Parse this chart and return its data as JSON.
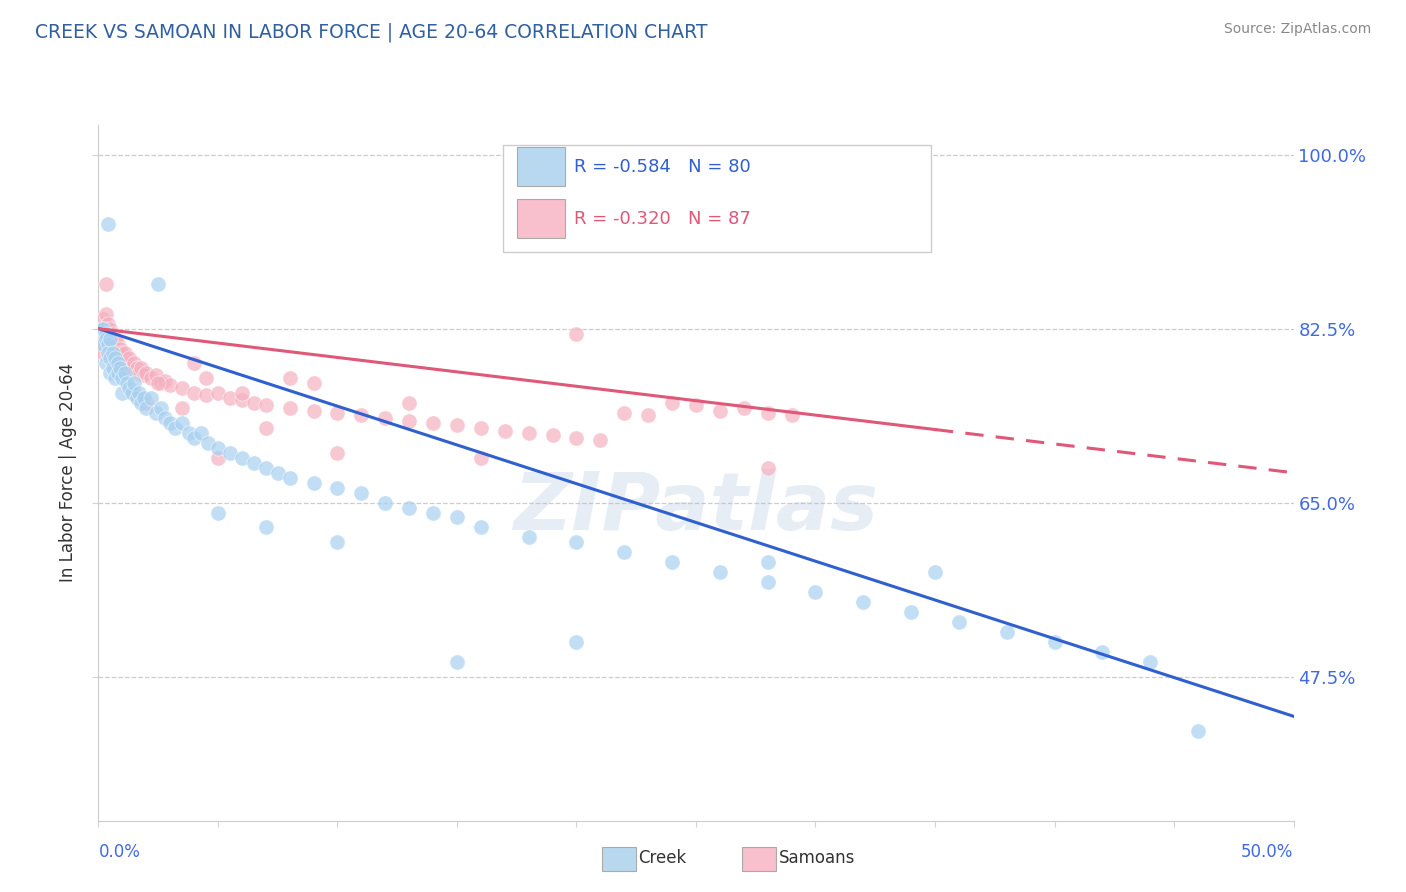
{
  "title": "CREEK VS SAMOAN IN LABOR FORCE | AGE 20-64 CORRELATION CHART",
  "ylabel": "In Labor Force | Age 20-64",
  "source": "Source: ZipAtlas.com",
  "creek_R": "-0.584",
  "creek_N": 80,
  "samoan_R": "-0.320",
  "samoan_N": 87,
  "xmin": 0.0,
  "xmax": 0.5,
  "ymin": 0.33,
  "ymax": 1.03,
  "yticks": [
    0.475,
    0.65,
    0.825,
    1.0
  ],
  "ytick_labels": [
    "47.5%",
    "65.0%",
    "82.5%",
    "100.0%"
  ],
  "creek_color": "#a8d0f0",
  "samoan_color": "#f5b0c0",
  "creek_line_color": "#3060d0",
  "samoan_line_color": "#e05878",
  "creek_line_y0": 0.825,
  "creek_line_y1": 0.435,
  "samoan_line_y0": 0.825,
  "samoan_line_y1": 0.68,
  "watermark_text": "ZIPatlas",
  "legend_box_color_creek": "#b8d8f0",
  "legend_box_color_samoan": "#f8c0cc",
  "creek_scatter": [
    [
      0.001,
      0.825
    ],
    [
      0.002,
      0.825
    ],
    [
      0.002,
      0.81
    ],
    [
      0.003,
      0.82
    ],
    [
      0.003,
      0.815
    ],
    [
      0.003,
      0.79
    ],
    [
      0.004,
      0.81
    ],
    [
      0.004,
      0.8
    ],
    [
      0.005,
      0.815
    ],
    [
      0.005,
      0.795
    ],
    [
      0.005,
      0.78
    ],
    [
      0.006,
      0.8
    ],
    [
      0.006,
      0.785
    ],
    [
      0.007,
      0.795
    ],
    [
      0.007,
      0.775
    ],
    [
      0.008,
      0.79
    ],
    [
      0.008,
      0.78
    ],
    [
      0.009,
      0.785
    ],
    [
      0.01,
      0.775
    ],
    [
      0.01,
      0.76
    ],
    [
      0.011,
      0.78
    ],
    [
      0.012,
      0.77
    ],
    [
      0.013,
      0.765
    ],
    [
      0.014,
      0.76
    ],
    [
      0.015,
      0.77
    ],
    [
      0.016,
      0.755
    ],
    [
      0.017,
      0.76
    ],
    [
      0.018,
      0.75
    ],
    [
      0.019,
      0.755
    ],
    [
      0.02,
      0.745
    ],
    [
      0.022,
      0.755
    ],
    [
      0.024,
      0.74
    ],
    [
      0.026,
      0.745
    ],
    [
      0.028,
      0.735
    ],
    [
      0.03,
      0.73
    ],
    [
      0.032,
      0.725
    ],
    [
      0.035,
      0.73
    ],
    [
      0.038,
      0.72
    ],
    [
      0.04,
      0.715
    ],
    [
      0.043,
      0.72
    ],
    [
      0.046,
      0.71
    ],
    [
      0.05,
      0.705
    ],
    [
      0.055,
      0.7
    ],
    [
      0.06,
      0.695
    ],
    [
      0.065,
      0.69
    ],
    [
      0.07,
      0.685
    ],
    [
      0.075,
      0.68
    ],
    [
      0.08,
      0.675
    ],
    [
      0.09,
      0.67
    ],
    [
      0.1,
      0.665
    ],
    [
      0.11,
      0.66
    ],
    [
      0.12,
      0.65
    ],
    [
      0.13,
      0.645
    ],
    [
      0.14,
      0.64
    ],
    [
      0.15,
      0.635
    ],
    [
      0.16,
      0.625
    ],
    [
      0.18,
      0.615
    ],
    [
      0.2,
      0.61
    ],
    [
      0.22,
      0.6
    ],
    [
      0.24,
      0.59
    ],
    [
      0.26,
      0.58
    ],
    [
      0.28,
      0.57
    ],
    [
      0.3,
      0.56
    ],
    [
      0.32,
      0.55
    ],
    [
      0.34,
      0.54
    ],
    [
      0.36,
      0.53
    ],
    [
      0.38,
      0.52
    ],
    [
      0.4,
      0.51
    ],
    [
      0.42,
      0.5
    ],
    [
      0.44,
      0.49
    ],
    [
      0.004,
      0.93
    ],
    [
      0.025,
      0.87
    ],
    [
      0.05,
      0.64
    ],
    [
      0.07,
      0.625
    ],
    [
      0.1,
      0.61
    ],
    [
      0.15,
      0.49
    ],
    [
      0.2,
      0.51
    ],
    [
      0.28,
      0.59
    ],
    [
      0.35,
      0.58
    ],
    [
      0.46,
      0.42
    ]
  ],
  "samoan_scatter": [
    [
      0.001,
      0.825
    ],
    [
      0.001,
      0.81
    ],
    [
      0.002,
      0.835
    ],
    [
      0.002,
      0.82
    ],
    [
      0.002,
      0.8
    ],
    [
      0.003,
      0.84
    ],
    [
      0.003,
      0.825
    ],
    [
      0.003,
      0.81
    ],
    [
      0.004,
      0.83
    ],
    [
      0.004,
      0.815
    ],
    [
      0.005,
      0.825
    ],
    [
      0.005,
      0.81
    ],
    [
      0.005,
      0.8
    ],
    [
      0.006,
      0.82
    ],
    [
      0.006,
      0.805
    ],
    [
      0.006,
      0.795
    ],
    [
      0.007,
      0.815
    ],
    [
      0.007,
      0.8
    ],
    [
      0.008,
      0.81
    ],
    [
      0.008,
      0.8
    ],
    [
      0.008,
      0.785
    ],
    [
      0.009,
      0.805
    ],
    [
      0.009,
      0.795
    ],
    [
      0.01,
      0.8
    ],
    [
      0.01,
      0.785
    ],
    [
      0.011,
      0.8
    ],
    [
      0.012,
      0.79
    ],
    [
      0.013,
      0.795
    ],
    [
      0.014,
      0.785
    ],
    [
      0.015,
      0.79
    ],
    [
      0.016,
      0.785
    ],
    [
      0.017,
      0.78
    ],
    [
      0.018,
      0.785
    ],
    [
      0.019,
      0.778
    ],
    [
      0.02,
      0.78
    ],
    [
      0.022,
      0.775
    ],
    [
      0.024,
      0.778
    ],
    [
      0.026,
      0.77
    ],
    [
      0.028,
      0.772
    ],
    [
      0.03,
      0.768
    ],
    [
      0.035,
      0.765
    ],
    [
      0.04,
      0.76
    ],
    [
      0.045,
      0.758
    ],
    [
      0.05,
      0.76
    ],
    [
      0.055,
      0.755
    ],
    [
      0.06,
      0.753
    ],
    [
      0.065,
      0.75
    ],
    [
      0.07,
      0.748
    ],
    [
      0.08,
      0.745
    ],
    [
      0.09,
      0.742
    ],
    [
      0.1,
      0.74
    ],
    [
      0.11,
      0.738
    ],
    [
      0.12,
      0.735
    ],
    [
      0.13,
      0.732
    ],
    [
      0.14,
      0.73
    ],
    [
      0.15,
      0.728
    ],
    [
      0.16,
      0.725
    ],
    [
      0.17,
      0.722
    ],
    [
      0.18,
      0.72
    ],
    [
      0.19,
      0.718
    ],
    [
      0.2,
      0.715
    ],
    [
      0.21,
      0.713
    ],
    [
      0.22,
      0.74
    ],
    [
      0.23,
      0.738
    ],
    [
      0.24,
      0.75
    ],
    [
      0.25,
      0.748
    ],
    [
      0.26,
      0.742
    ],
    [
      0.27,
      0.745
    ],
    [
      0.28,
      0.74
    ],
    [
      0.29,
      0.738
    ],
    [
      0.003,
      0.87
    ],
    [
      0.02,
      0.75
    ],
    [
      0.04,
      0.79
    ],
    [
      0.06,
      0.76
    ],
    [
      0.08,
      0.775
    ],
    [
      0.1,
      0.7
    ],
    [
      0.13,
      0.75
    ],
    [
      0.16,
      0.695
    ],
    [
      0.2,
      0.82
    ],
    [
      0.28,
      0.685
    ],
    [
      0.05,
      0.695
    ],
    [
      0.07,
      0.725
    ],
    [
      0.09,
      0.77
    ],
    [
      0.015,
      0.76
    ],
    [
      0.025,
      0.77
    ],
    [
      0.035,
      0.745
    ],
    [
      0.045,
      0.775
    ]
  ]
}
